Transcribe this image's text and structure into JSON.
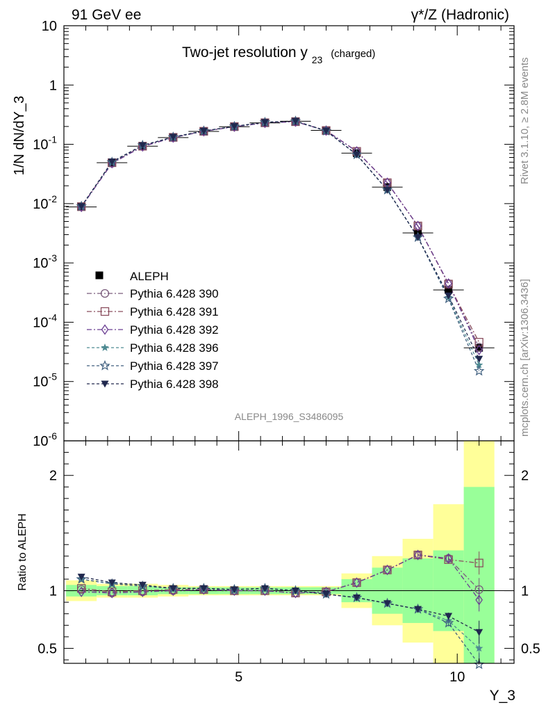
{
  "header": {
    "left": "91 GeV ee",
    "right": "γ*/Z (Hadronic)"
  },
  "side_labels": {
    "rivet": "Rivet 3.1.10, ≥ 2.8M events",
    "mcplots": "mcplots.cern.ch [arXiv:1306.3436]"
  },
  "chart_data": {
    "type": "line",
    "title_main": "Two-jet resolution y",
    "title_sub": "23",
    "title_suffix": "(charged)",
    "ylabel": "1/N dN/dY_3",
    "xlabel": "Y_3",
    "ratio_ylabel": "Ratio to ALEPH",
    "analysis_id": "ALEPH_1996_S3486095",
    "xlim": [
      1.0,
      11.3
    ],
    "ylim": [
      1e-06,
      10
    ],
    "yscale": "log",
    "ratio_ylim": [
      0.37,
      2.3
    ],
    "x_ticks": [
      5,
      10
    ],
    "y_ticks": [
      "10",
      "1",
      "10^-1",
      "10^-2",
      "10^-3",
      "10^-4",
      "10^-5",
      "10^-6"
    ],
    "ratio_ticks": [
      "0.5",
      "1",
      "2"
    ],
    "x": [
      1.4,
      2.1,
      2.8,
      3.5,
      4.2,
      4.9,
      5.6,
      6.3,
      7.0,
      7.7,
      8.4,
      9.1,
      9.8,
      10.5
    ],
    "data": {
      "name": "ALEPH",
      "color": "#000000",
      "values": [
        0.0088,
        0.049,
        0.093,
        0.13,
        0.165,
        0.198,
        0.23,
        0.245,
        0.172,
        0.071,
        0.019,
        0.0032,
        0.00035,
        3.7e-05
      ],
      "ratio_band_inner": [
        0.05,
        0.04,
        0.04,
        0.03,
        0.03,
        0.03,
        0.03,
        0.03,
        0.03,
        0.1,
        0.2,
        0.28,
        0.35,
        0.9
      ],
      "ratio_band_outer": [
        0.09,
        0.06,
        0.06,
        0.05,
        0.04,
        0.04,
        0.04,
        0.04,
        0.04,
        0.15,
        0.3,
        0.45,
        0.75,
        1.3
      ]
    },
    "series": [
      {
        "name": "Pythia 6.428 390",
        "color": "#7a5c7c",
        "marker": "circle-open",
        "dash": "7,3,2,3",
        "values": [
          0.0089,
          0.048,
          0.092,
          0.13,
          0.166,
          0.198,
          0.23,
          0.241,
          0.171,
          0.076,
          0.0225,
          0.0042,
          0.00045,
          3.8e-05
        ],
        "ratio": [
          1.01,
          0.98,
          0.99,
          1.0,
          1.01,
          1.0,
          1.0,
          0.98,
          0.99,
          1.07,
          1.18,
          1.31,
          1.28,
          1.01
        ]
      },
      {
        "name": "Pythia 6.428 391",
        "color": "#8a4e5e",
        "marker": "square-open",
        "dash": "7,3,2,3",
        "values": [
          0.0089,
          0.049,
          0.093,
          0.131,
          0.166,
          0.199,
          0.231,
          0.241,
          0.171,
          0.076,
          0.0225,
          0.0042,
          0.00044,
          4.6e-05
        ],
        "ratio": [
          1.02,
          0.99,
          1.0,
          1.01,
          1.01,
          1.0,
          1.0,
          0.98,
          0.99,
          1.07,
          1.18,
          1.31,
          1.27,
          1.24
        ]
      },
      {
        "name": "Pythia 6.428 392",
        "color": "#6a3d92",
        "marker": "diamond-open",
        "dash": "7,3,2,3",
        "values": [
          0.0088,
          0.048,
          0.092,
          0.13,
          0.166,
          0.198,
          0.23,
          0.241,
          0.17,
          0.076,
          0.0225,
          0.0042,
          0.00045,
          3.4e-05
        ],
        "ratio": [
          0.99,
          0.98,
          0.99,
          1.0,
          1.01,
          1.0,
          1.0,
          0.98,
          0.99,
          1.07,
          1.18,
          1.31,
          1.28,
          0.92
        ]
      },
      {
        "name": "Pythia 6.428 396",
        "color": "#4e8a92",
        "marker": "star-filled",
        "dash": "4,3",
        "values": [
          0.009,
          0.05,
          0.096,
          0.132,
          0.168,
          0.2,
          0.235,
          0.246,
          0.168,
          0.067,
          0.017,
          0.0027,
          0.00026,
          1.9e-05
        ],
        "ratio": [
          1.1,
          1.06,
          1.04,
          1.02,
          1.02,
          1.01,
          1.02,
          1.0,
          0.97,
          0.94,
          0.89,
          0.84,
          0.74,
          0.5
        ]
      },
      {
        "name": "Pythia 6.428 397",
        "color": "#3e5e7e",
        "marker": "star-open",
        "dash": "4,3",
        "values": [
          0.009,
          0.05,
          0.096,
          0.132,
          0.168,
          0.2,
          0.235,
          0.246,
          0.168,
          0.067,
          0.017,
          0.0027,
          0.00025,
          1.5e-05
        ],
        "ratio": [
          1.1,
          1.06,
          1.04,
          1.02,
          1.02,
          1.01,
          1.02,
          1.0,
          0.97,
          0.94,
          0.89,
          0.84,
          0.72,
          0.36
        ]
      },
      {
        "name": "Pythia 6.428 398",
        "color": "#20284e",
        "marker": "tri-down",
        "dash": "4,3",
        "values": [
          0.009,
          0.051,
          0.096,
          0.133,
          0.168,
          0.201,
          0.236,
          0.247,
          0.169,
          0.067,
          0.017,
          0.0027,
          0.00028,
          2.4e-05
        ],
        "ratio": [
          1.12,
          1.07,
          1.05,
          1.02,
          1.02,
          1.01,
          1.02,
          1.0,
          0.97,
          0.94,
          0.89,
          0.84,
          0.78,
          0.64
        ]
      }
    ],
    "legend_placement": "left-middle"
  }
}
